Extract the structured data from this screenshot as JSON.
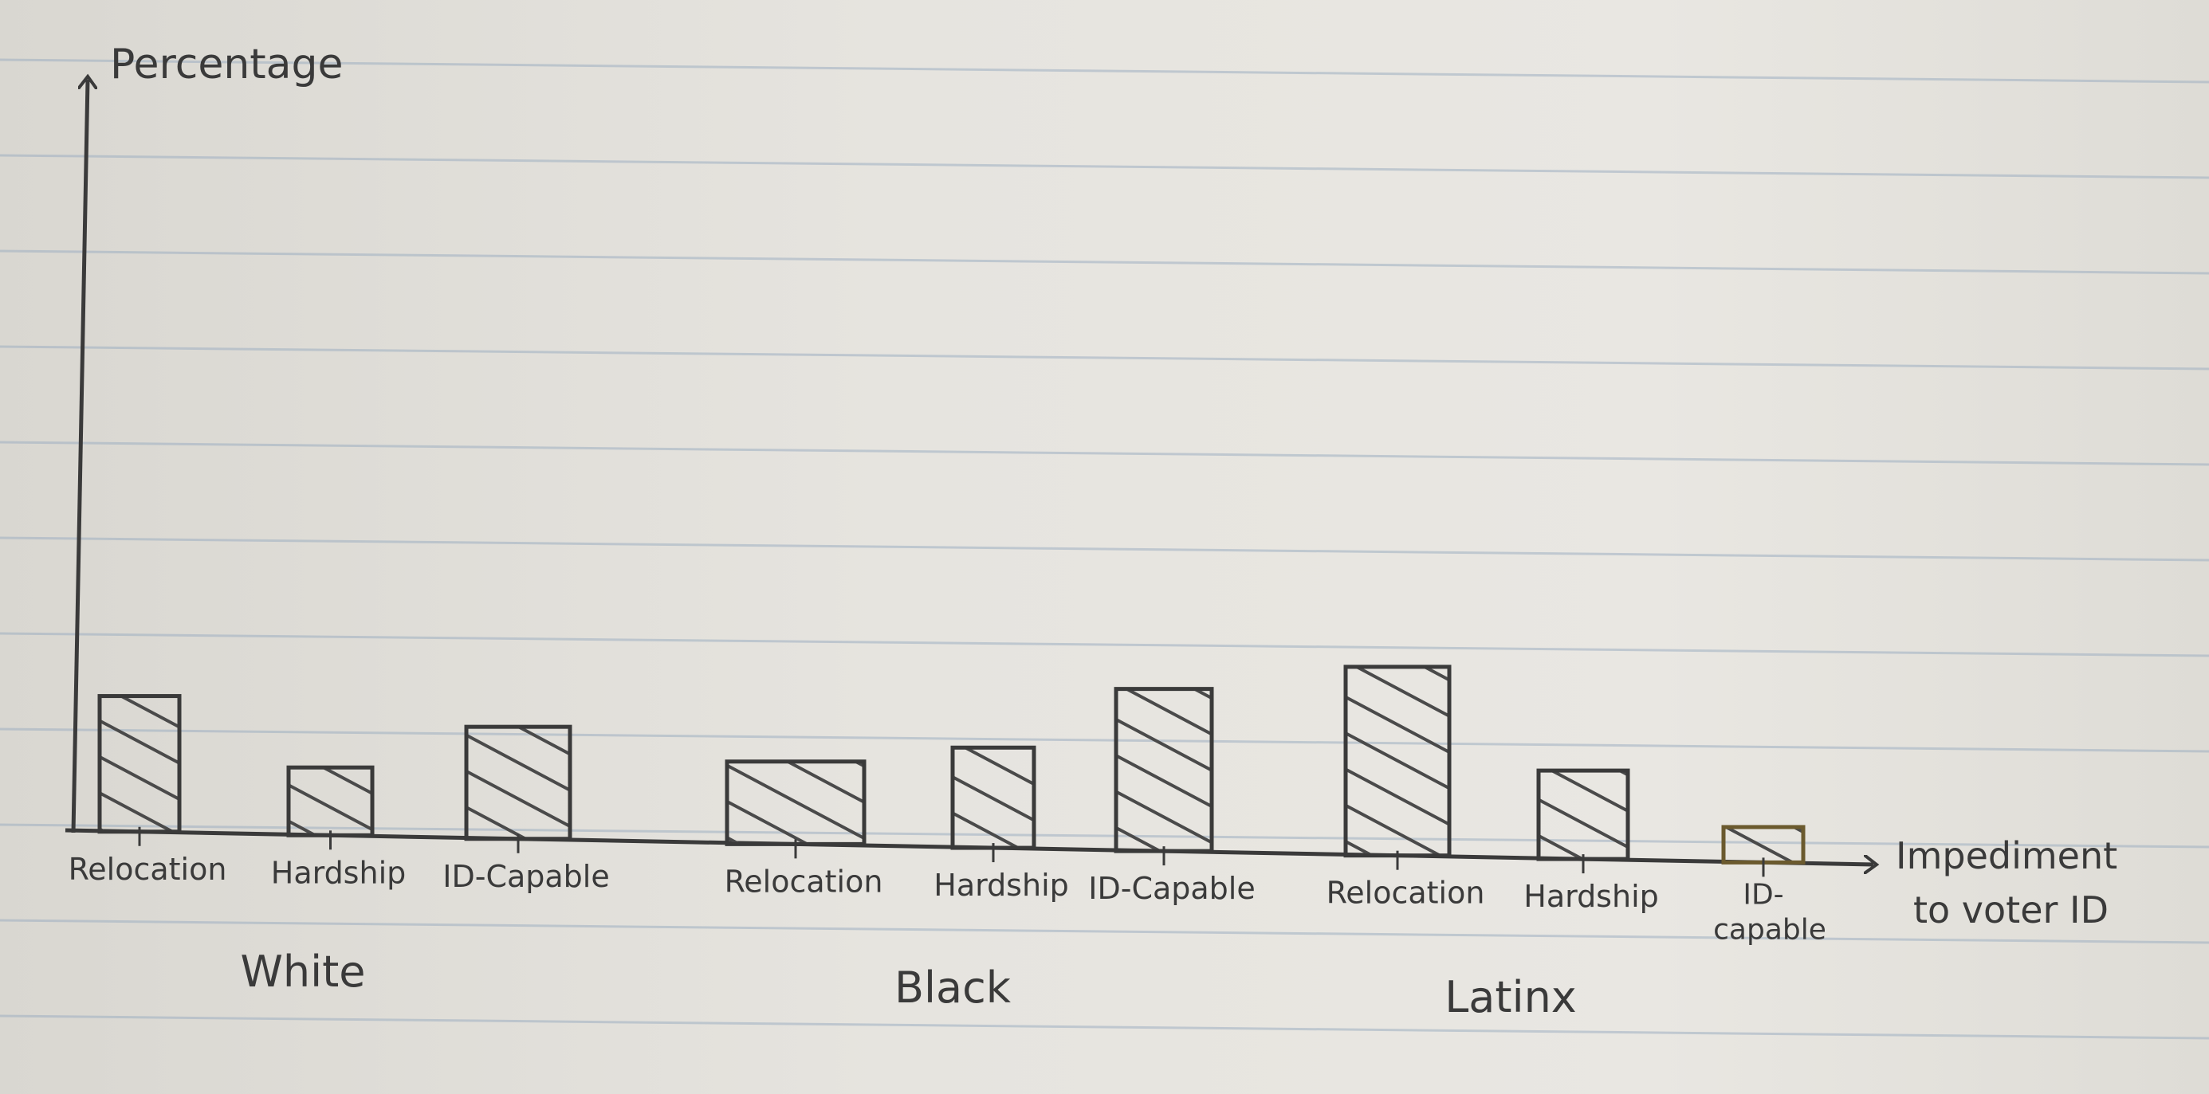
{
  "chart_data": {
    "type": "bar",
    "ylabel": "Percentage",
    "xlabel": "Impediment to voter ID",
    "groups": [
      "White",
      "Black",
      "Latinx"
    ],
    "bars": [
      {
        "group": "White",
        "label": "Relocation",
        "value": 23
      },
      {
        "group": "White",
        "label": "Hardship",
        "value": 11.5
      },
      {
        "group": "White",
        "label": "ID-Capable",
        "value": 19
      },
      {
        "group": "Black",
        "label": "Relocation",
        "value": 14
      },
      {
        "group": "Black",
        "label": "Hardship",
        "value": 17
      },
      {
        "group": "Black",
        "label": "ID-Capable",
        "value": 27.5
      },
      {
        "group": "Latinx",
        "label": "Relocation",
        "value": 32
      },
      {
        "group": "Latinx",
        "label": "Hardship",
        "value": 15
      },
      {
        "group": "Latinx",
        "label": "ID-capable",
        "value": 6
      }
    ],
    "ylim": [
      0,
      100
    ],
    "grid": false,
    "legend": "none",
    "colors": {
      "paper": "#e6e4df",
      "rule": "#9fb0c2",
      "ink": "#3a3a3a",
      "hatch": "#4a4a4a",
      "gold_bar": "#6b5a2e"
    }
  }
}
